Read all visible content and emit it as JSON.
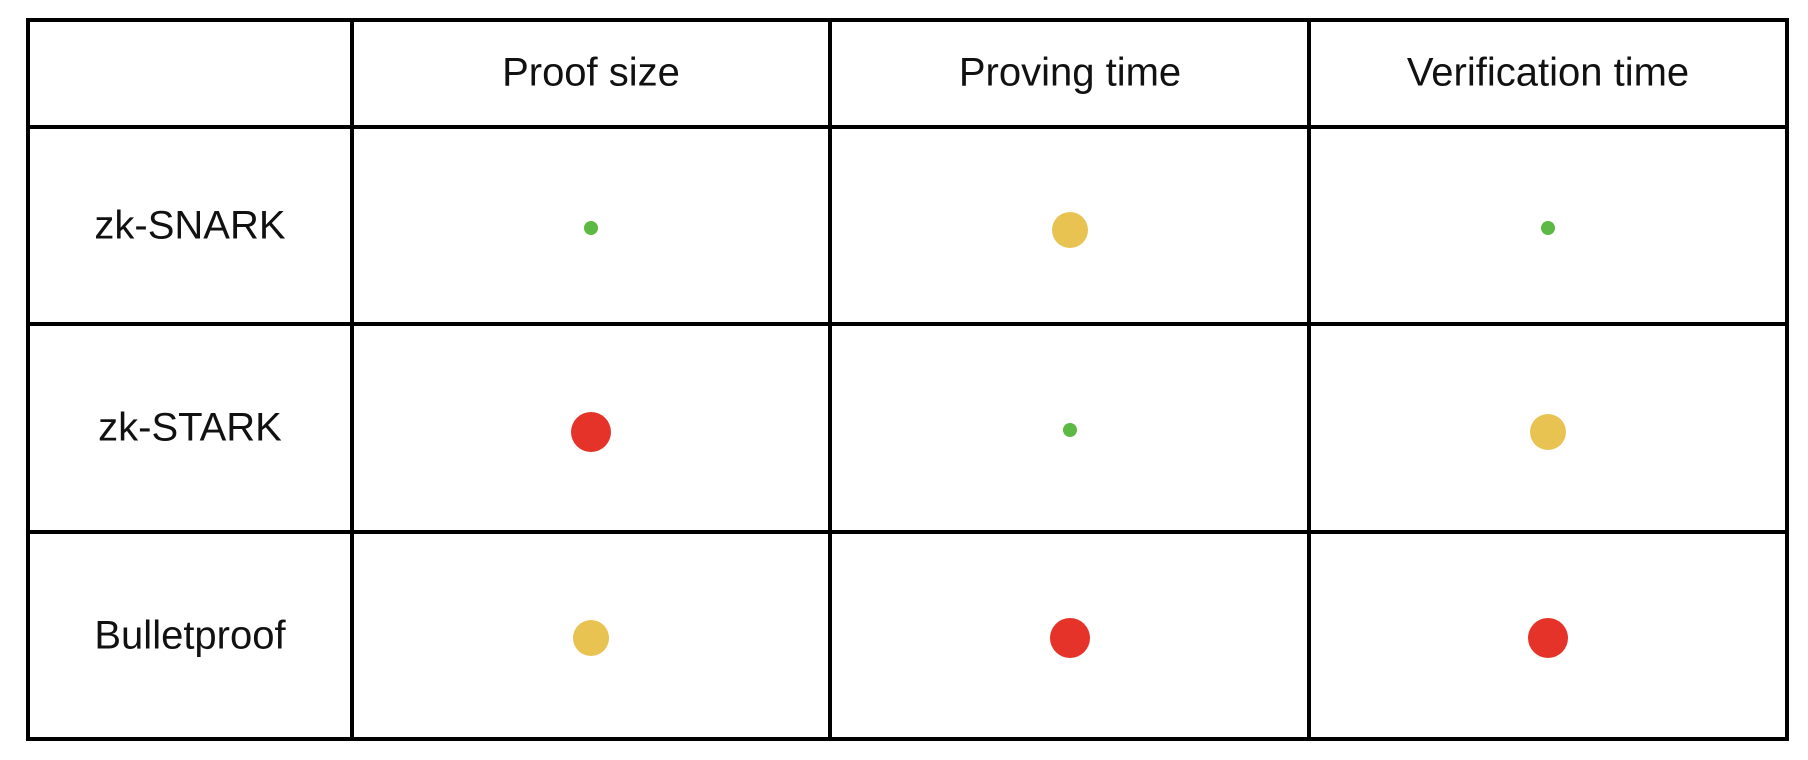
{
  "table": {
    "header": [
      "Proof size",
      "Proving time",
      "Verification time"
    ],
    "rows": [
      "zk-SNARK",
      "zk-STARK",
      "Bulletproof"
    ]
  }
}
